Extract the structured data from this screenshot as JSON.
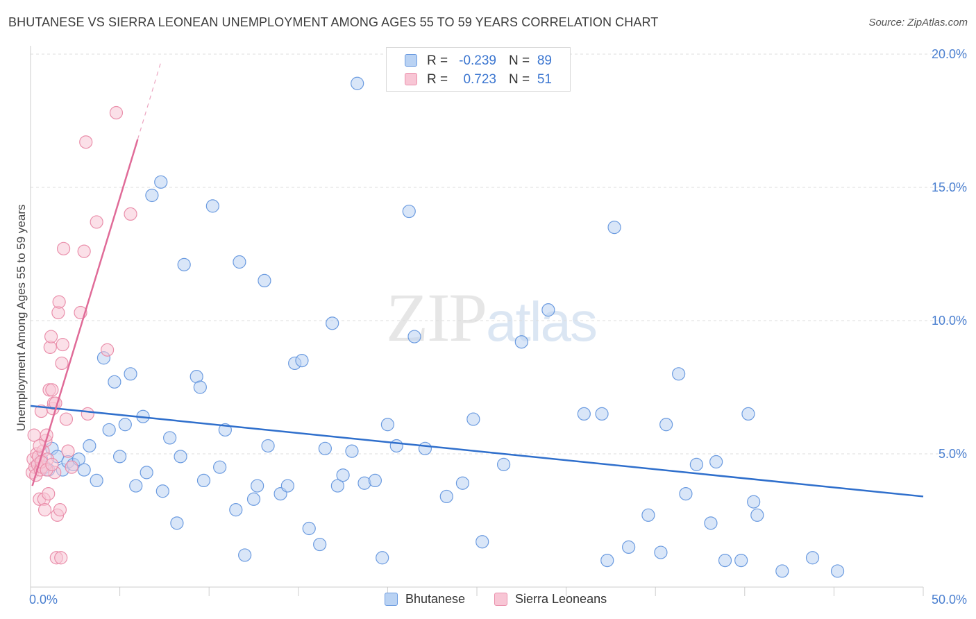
{
  "title": "BHUTANESE VS SIERRA LEONEAN UNEMPLOYMENT AMONG AGES 55 TO 59 YEARS CORRELATION CHART",
  "source": "Source: ZipAtlas.com",
  "watermark": {
    "zip": "ZIP",
    "atlas": "atlas"
  },
  "colors": {
    "blue_fill": "#b9d2f3",
    "blue_stroke": "#6b9be0",
    "blue_line": "#2f6fcc",
    "pink_fill": "#f8c6d5",
    "pink_stroke": "#ea8fab",
    "pink_line": "#e06b98",
    "grid": "#dcdcdc",
    "axis": "#cccccc"
  },
  "legend_top": {
    "rows": [
      {
        "series": "Bhutanese",
        "r_label": "R =",
        "r_value": "-0.239",
        "n_label": "N =",
        "n_value": "89"
      },
      {
        "series": "Sierra Leoneans",
        "r_label": "R =",
        "r_value": "0.723",
        "n_label": "N =",
        "n_value": "51"
      }
    ]
  },
  "legend_bottom": [
    "Bhutanese",
    "Sierra Leoneans"
  ],
  "chart_data": {
    "type": "scatter",
    "title": "BHUTANESE VS SIERRA LEONEAN UNEMPLOYMENT AMONG AGES 55 TO 59 YEARS CORRELATION CHART",
    "xlabel": "",
    "ylabel": "Unemployment Among Ages 55 to 59 years",
    "xlim": [
      0,
      50
    ],
    "ylim": [
      0,
      20
    ],
    "x_tick_labels": [
      "0.0%",
      "50.0%"
    ],
    "y_ticks": [
      5,
      10,
      15,
      20
    ],
    "y_tick_labels": [
      "5.0%",
      "10.0%",
      "15.0%",
      "20.0%"
    ],
    "grid": true,
    "legend_position": "top-center",
    "series": [
      {
        "name": "Bhutanese",
        "trend": {
          "x": [
            0,
            50
          ],
          "y": [
            6.8,
            3.4
          ]
        },
        "points": [
          [
            0.4,
            4.6
          ],
          [
            0.6,
            4.8
          ],
          [
            0.8,
            4.5
          ],
          [
            1.0,
            4.4
          ],
          [
            1.2,
            5.2
          ],
          [
            1.5,
            4.9
          ],
          [
            1.8,
            4.4
          ],
          [
            2.1,
            4.7
          ],
          [
            2.4,
            4.6
          ],
          [
            2.7,
            4.8
          ],
          [
            3.0,
            4.4
          ],
          [
            3.3,
            5.3
          ],
          [
            3.7,
            4.0
          ],
          [
            4.1,
            8.6
          ],
          [
            4.4,
            5.9
          ],
          [
            4.7,
            7.7
          ],
          [
            5.0,
            4.9
          ],
          [
            5.3,
            6.1
          ],
          [
            5.6,
            8.0
          ],
          [
            5.9,
            3.8
          ],
          [
            6.3,
            6.4
          ],
          [
            6.5,
            4.3
          ],
          [
            6.8,
            14.7
          ],
          [
            7.3,
            15.2
          ],
          [
            7.4,
            3.6
          ],
          [
            7.8,
            5.6
          ],
          [
            8.2,
            2.4
          ],
          [
            8.6,
            12.1
          ],
          [
            8.4,
            4.9
          ],
          [
            9.3,
            7.9
          ],
          [
            9.5,
            7.5
          ],
          [
            9.7,
            4.0
          ],
          [
            10.2,
            14.3
          ],
          [
            10.6,
            4.5
          ],
          [
            10.9,
            5.9
          ],
          [
            11.5,
            2.9
          ],
          [
            11.7,
            12.2
          ],
          [
            12.0,
            1.2
          ],
          [
            12.5,
            3.3
          ],
          [
            12.7,
            3.8
          ],
          [
            13.1,
            11.5
          ],
          [
            13.3,
            5.3
          ],
          [
            14.0,
            3.5
          ],
          [
            14.4,
            3.8
          ],
          [
            14.8,
            8.4
          ],
          [
            15.2,
            8.5
          ],
          [
            15.6,
            2.2
          ],
          [
            16.2,
            1.6
          ],
          [
            16.5,
            5.2
          ],
          [
            16.9,
            9.9
          ],
          [
            17.2,
            3.8
          ],
          [
            17.5,
            4.2
          ],
          [
            18.0,
            5.1
          ],
          [
            18.3,
            18.9
          ],
          [
            18.7,
            3.9
          ],
          [
            19.3,
            4.0
          ],
          [
            19.7,
            1.1
          ],
          [
            20.0,
            6.1
          ],
          [
            20.5,
            5.3
          ],
          [
            21.2,
            14.1
          ],
          [
            21.5,
            9.4
          ],
          [
            22.1,
            5.2
          ],
          [
            23.3,
            3.4
          ],
          [
            24.2,
            3.9
          ],
          [
            24.8,
            6.3
          ],
          [
            25.3,
            1.7
          ],
          [
            26.5,
            4.6
          ],
          [
            27.5,
            9.2
          ],
          [
            29.0,
            10.4
          ],
          [
            31.0,
            6.5
          ],
          [
            32.0,
            6.5
          ],
          [
            32.3,
            1.0
          ],
          [
            32.7,
            13.5
          ],
          [
            33.5,
            1.5
          ],
          [
            34.6,
            2.7
          ],
          [
            35.3,
            1.3
          ],
          [
            35.6,
            6.1
          ],
          [
            36.3,
            8.0
          ],
          [
            36.7,
            3.5
          ],
          [
            37.3,
            4.6
          ],
          [
            38.1,
            2.4
          ],
          [
            38.4,
            4.7
          ],
          [
            38.9,
            1.0
          ],
          [
            39.8,
            1.0
          ],
          [
            40.2,
            6.5
          ],
          [
            40.5,
            3.2
          ],
          [
            40.7,
            2.7
          ],
          [
            42.1,
            0.6
          ],
          [
            43.8,
            1.1
          ],
          [
            45.2,
            0.6
          ]
        ]
      },
      {
        "name": "Sierra Leoneans",
        "trend": {
          "x": [
            0.1,
            6.0
          ],
          "y": [
            3.8,
            16.8
          ],
          "dashed_extension": {
            "x": [
              6.0,
              7.3
            ],
            "y": [
              16.8,
              19.7
            ]
          }
        },
        "points": [
          [
            0.1,
            4.3
          ],
          [
            0.15,
            4.8
          ],
          [
            0.2,
            5.7
          ],
          [
            0.25,
            4.5
          ],
          [
            0.3,
            4.2
          ],
          [
            0.35,
            5.0
          ],
          [
            0.4,
            4.6
          ],
          [
            0.45,
            4.9
          ],
          [
            0.5,
            3.3
          ],
          [
            0.55,
            4.4
          ],
          [
            0.6,
            6.6
          ],
          [
            0.65,
            4.5
          ],
          [
            0.7,
            5.1
          ],
          [
            0.75,
            3.3
          ],
          [
            0.8,
            2.9
          ],
          [
            0.85,
            5.5
          ],
          [
            0.9,
            5.7
          ],
          [
            0.95,
            4.8
          ],
          [
            1.0,
            3.5
          ],
          [
            1.05,
            7.4
          ],
          [
            1.1,
            9.0
          ],
          [
            1.15,
            9.4
          ],
          [
            1.2,
            7.4
          ],
          [
            1.25,
            6.7
          ],
          [
            1.3,
            6.9
          ],
          [
            1.35,
            4.3
          ],
          [
            1.4,
            6.9
          ],
          [
            1.45,
            1.1
          ],
          [
            1.5,
            2.7
          ],
          [
            1.55,
            10.3
          ],
          [
            1.6,
            10.7
          ],
          [
            1.65,
            2.9
          ],
          [
            1.7,
            1.1
          ],
          [
            1.75,
            8.4
          ],
          [
            1.8,
            9.1
          ],
          [
            1.85,
            12.7
          ],
          [
            2.0,
            6.3
          ],
          [
            2.1,
            5.1
          ],
          [
            2.3,
            4.5
          ],
          [
            2.8,
            10.3
          ],
          [
            3.0,
            12.6
          ],
          [
            3.1,
            16.7
          ],
          [
            3.2,
            6.5
          ],
          [
            3.7,
            13.7
          ],
          [
            4.3,
            8.9
          ],
          [
            4.8,
            17.8
          ],
          [
            5.6,
            14.0
          ],
          [
            0.6,
            4.7
          ],
          [
            0.9,
            4.4
          ],
          [
            0.5,
            5.3
          ],
          [
            1.2,
            4.6
          ]
        ]
      }
    ]
  }
}
